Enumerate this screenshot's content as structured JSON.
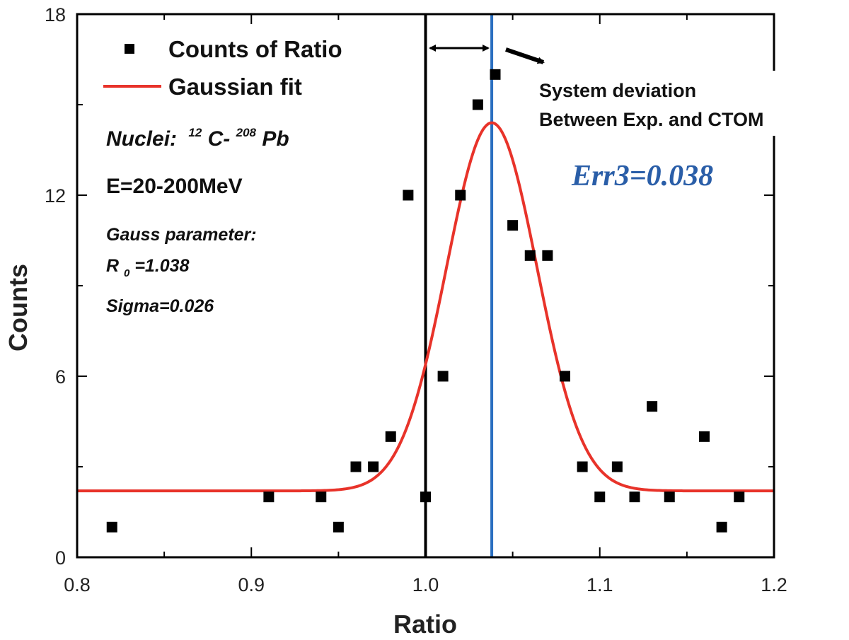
{
  "chart_data": {
    "type": "scatter",
    "xlabel": "Ratio",
    "ylabel": "Counts",
    "xlim": [
      0.8,
      1.2
    ],
    "ylim": [
      0,
      18
    ],
    "x_ticks": [
      "0.8",
      "0.9",
      "1.0",
      "1.1",
      "1.2"
    ],
    "y_ticks": [
      "0",
      "6",
      "12",
      "18"
    ],
    "legend": {
      "placement": "top-left",
      "entries": [
        "Counts of Ratio",
        "Gaussian fit"
      ]
    },
    "series": [
      {
        "name": "Counts of Ratio",
        "kind": "scatter",
        "color": "#000000",
        "x": [
          0.82,
          0.91,
          0.94,
          0.95,
          0.96,
          0.97,
          0.98,
          0.99,
          1.0,
          1.01,
          1.02,
          1.03,
          1.04,
          1.05,
          1.06,
          1.07,
          1.08,
          1.09,
          1.1,
          1.11,
          1.12,
          1.13,
          1.14,
          1.16,
          1.17,
          1.18
        ],
        "y": [
          1,
          2,
          2,
          1,
          3,
          3,
          4,
          12,
          2,
          6,
          12,
          15,
          16,
          11,
          10,
          10,
          6,
          3,
          2,
          3,
          2,
          5,
          2,
          4,
          1,
          2
        ]
      },
      {
        "name": "Gaussian fit",
        "kind": "line",
        "color": "#e8332a",
        "r0": 1.038,
        "sigma": 0.026,
        "baseline": 2.2,
        "peak": 14.4
      }
    ],
    "vertical_lines": [
      {
        "x": 1.0,
        "color": "#000000"
      },
      {
        "x": 1.038,
        "color": "#2a6fc0"
      }
    ],
    "annotations": {
      "nuclei_label": "Nuclei:",
      "nuclei_mass_1": "12",
      "nuclei_elem_1": "C-",
      "nuclei_mass_2": "208",
      "nuclei_elem_2": "Pb",
      "energy": "E=20-200MeV",
      "gauss_title": "Gauss parameter:",
      "r0_symbol": "R",
      "r0_sub": "0",
      "r0_value": "=1.038",
      "sigma": "Sigma=0.026",
      "deviation_line1": "System deviation",
      "deviation_line2": "Between Exp. and CTOM",
      "err": "Err3=0.038"
    }
  }
}
